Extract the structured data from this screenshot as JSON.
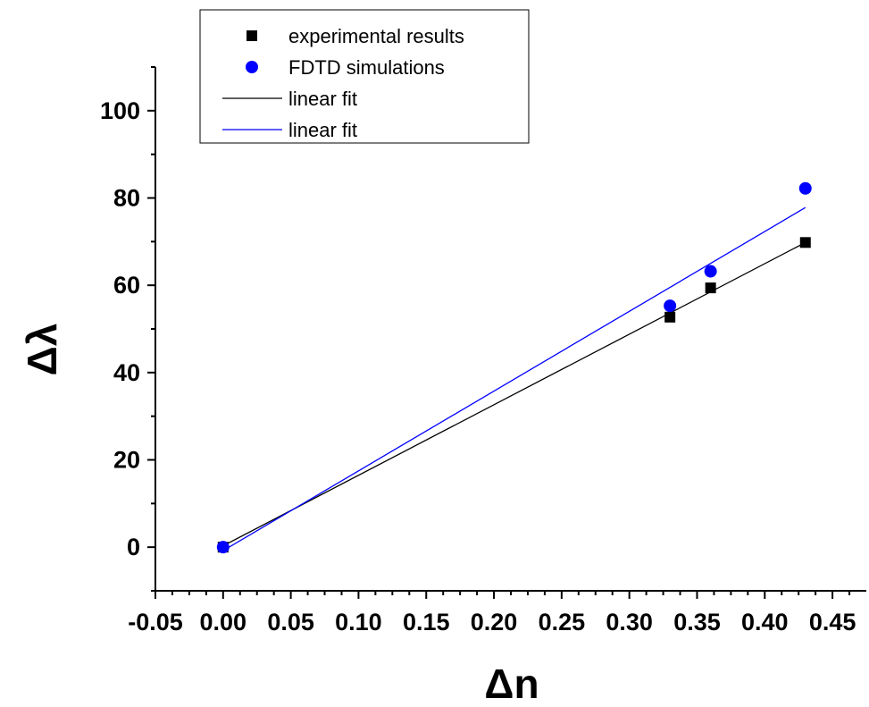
{
  "chart_data": {
    "type": "scatter",
    "xlabel": "Δn",
    "ylabel": "Δλ",
    "xlim": [
      -0.05,
      0.475
    ],
    "ylim": [
      -10,
      110
    ],
    "x_ticks": [
      "-0.05",
      "0.00",
      "0.05",
      "0.10",
      "0.15",
      "0.20",
      "0.25",
      "0.30",
      "0.35",
      "0.40",
      "0.45"
    ],
    "x_tick_values": [
      -0.05,
      0.0,
      0.05,
      0.1,
      0.15,
      0.2,
      0.25,
      0.3,
      0.35,
      0.4,
      0.45
    ],
    "y_ticks": [
      "0",
      "20",
      "40",
      "60",
      "80",
      "100"
    ],
    "y_tick_values": [
      0,
      20,
      40,
      60,
      80,
      100
    ],
    "grid": false,
    "legend_position": "top-left",
    "series": [
      {
        "name": "experimental results",
        "kind": "points",
        "marker": "square",
        "color": "#000000",
        "x": [
          0.0,
          0.33,
          0.36,
          0.43
        ],
        "y": [
          0,
          52.7,
          59.4,
          69.8
        ]
      },
      {
        "name": "FDTD simulations",
        "kind": "points",
        "marker": "circle",
        "color": "#0000ff",
        "x": [
          0.0,
          0.33,
          0.36,
          0.43
        ],
        "y": [
          0,
          55.3,
          63.2,
          82.2
        ]
      },
      {
        "name": "linear fit",
        "kind": "line",
        "color": "#000000",
        "x": [
          0.0,
          0.43
        ],
        "y": [
          0.3,
          69.8
        ]
      },
      {
        "name": "linear fit",
        "kind": "line",
        "color": "#0000ff",
        "x": [
          0.0,
          0.43
        ],
        "y": [
          -0.8,
          77.8
        ]
      }
    ]
  }
}
